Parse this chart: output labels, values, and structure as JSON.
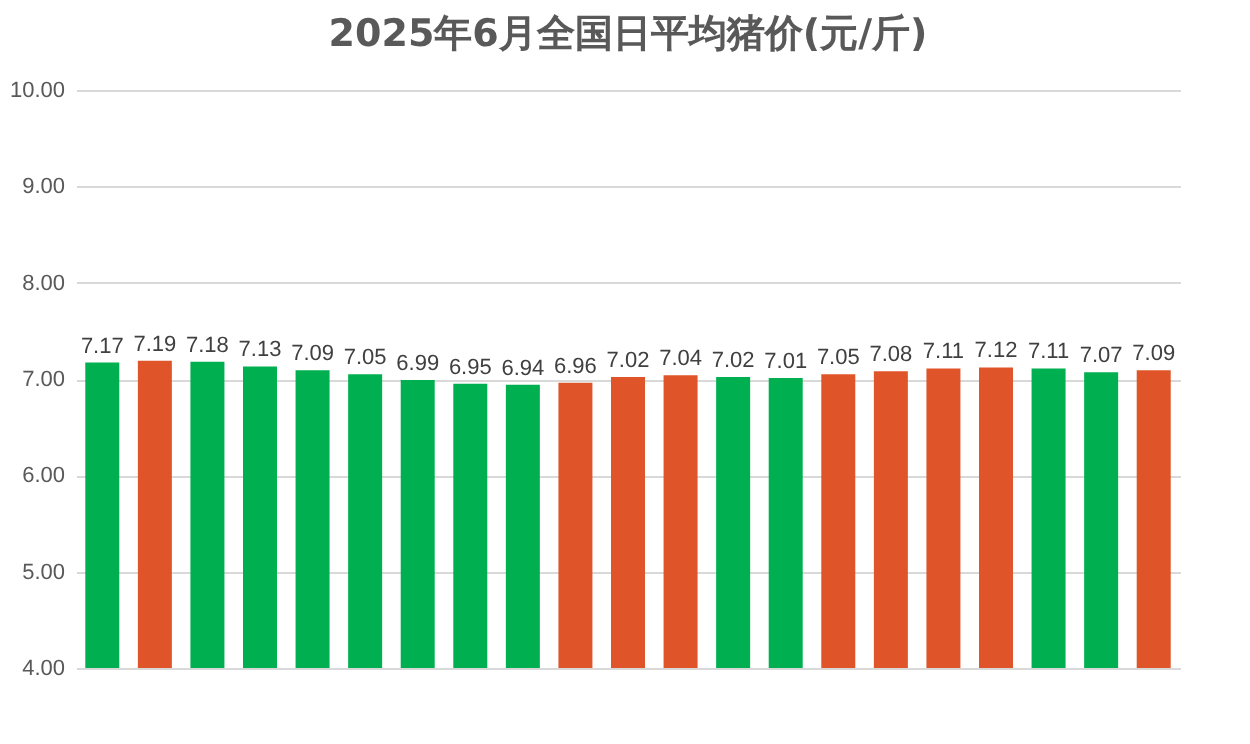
{
  "chart_data": {
    "type": "bar",
    "title": "2025年6月全国日平均猪价(元/斤)",
    "categories": [
      null,
      null,
      null,
      null,
      null,
      null,
      null,
      null,
      null,
      null,
      null,
      null,
      null,
      null,
      null,
      null,
      null,
      null,
      null,
      null,
      null
    ],
    "values": [
      7.17,
      7.19,
      7.18,
      7.13,
      7.09,
      7.05,
      6.99,
      6.95,
      6.94,
      6.96,
      7.02,
      7.04,
      7.02,
      7.01,
      7.05,
      7.08,
      7.11,
      7.12,
      7.11,
      7.07,
      7.09
    ],
    "colors": [
      "#00b050",
      "#e0542a",
      "#00b050",
      "#00b050",
      "#00b050",
      "#00b050",
      "#00b050",
      "#00b050",
      "#00b050",
      "#e0542a",
      "#e0542a",
      "#e0542a",
      "#00b050",
      "#00b050",
      "#e0542a",
      "#e0542a",
      "#e0542a",
      "#e0542a",
      "#00b050",
      "#00b050",
      "#e0542a"
    ],
    "ylim": [
      4,
      10
    ],
    "yticks": [
      {
        "value": 4,
        "label": "4.00"
      },
      {
        "value": 5,
        "label": "5.00"
      },
      {
        "value": 6,
        "label": "6.00"
      },
      {
        "value": 7,
        "label": "7.00"
      },
      {
        "value": 8,
        "label": "8.00"
      },
      {
        "value": 9,
        "label": "9.00"
      },
      {
        "value": 10,
        "label": "10.00"
      }
    ],
    "grid": "y",
    "data_labels": true,
    "tick_labels": "y"
  }
}
